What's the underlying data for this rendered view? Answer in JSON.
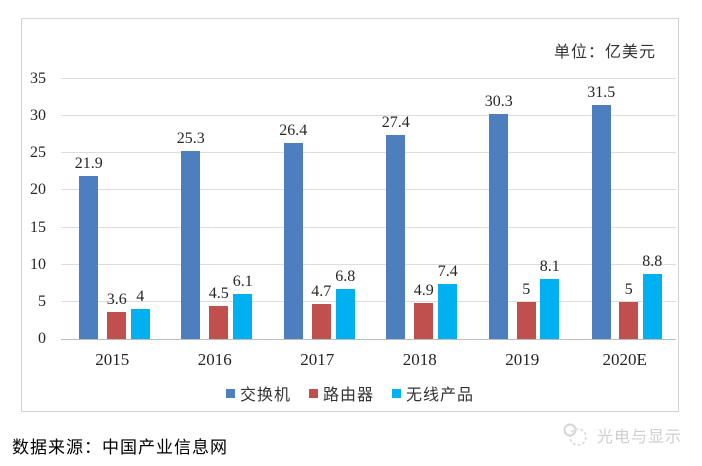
{
  "unit_label": "单位：亿美元",
  "source_caption": "数据来源：中国产业信息网",
  "watermark": {
    "text": "光电与显示"
  },
  "chart_data": {
    "type": "bar",
    "title": "",
    "xlabel": "",
    "ylabel": "",
    "unit": "亿美元",
    "categories": [
      "2015",
      "2016",
      "2017",
      "2018",
      "2019",
      "2020E"
    ],
    "series": [
      {
        "name": "交换机",
        "color": "#4d7ebe",
        "values": [
          21.9,
          25.3,
          26.4,
          27.4,
          30.3,
          31.5
        ]
      },
      {
        "name": "路由器",
        "color": "#c0504d",
        "values": [
          3.6,
          4.5,
          4.7,
          4.9,
          5,
          5
        ]
      },
      {
        "name": "无线产品",
        "color": "#00b0f0",
        "values": [
          4,
          6.1,
          6.8,
          7.4,
          8.1,
          8.8
        ]
      }
    ],
    "ylim": [
      0,
      35
    ],
    "yticks": [
      0,
      5,
      10,
      15,
      20,
      25,
      30,
      35
    ],
    "grid": true,
    "legend_position": "bottom"
  },
  "colors": {
    "gridline": "#dcdcdc",
    "baseline": "#bdbdbd",
    "frame_border": "#d3d3d3",
    "tick_text": "#262626",
    "watermark": "#cfcfcf"
  }
}
